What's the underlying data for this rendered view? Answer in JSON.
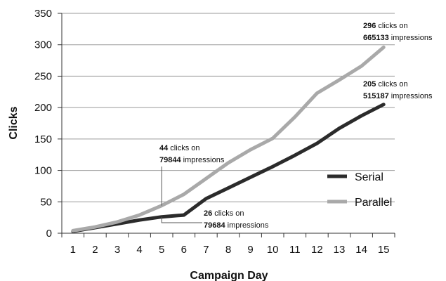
{
  "chart_data": {
    "type": "line",
    "title": "",
    "xlabel": "Campaign Day",
    "ylabel": "Clicks",
    "x": [
      1,
      2,
      3,
      4,
      5,
      6,
      7,
      8,
      9,
      10,
      11,
      12,
      13,
      14,
      15
    ],
    "ylim": [
      0,
      350
    ],
    "yticks": [
      0,
      50,
      100,
      150,
      200,
      250,
      300,
      350
    ],
    "grid": "horizontal",
    "legend_position": "right",
    "series": [
      {
        "name": "Serial",
        "color": "#2b2b2b",
        "values": [
          3,
          9,
          15,
          21,
          26,
          29,
          55,
          72,
          89,
          106,
          124,
          143,
          167,
          187,
          205
        ]
      },
      {
        "name": "Parallel",
        "color": "#a9a9a9",
        "values": [
          4,
          10,
          18,
          29,
          44,
          62,
          87,
          112,
          133,
          151,
          185,
          223,
          244,
          266,
          296
        ]
      }
    ],
    "annotations": [
      {
        "clicks": "296",
        "clicks_text": " clicks on",
        "impressions": "665133",
        "impressions_text": " impressions"
      },
      {
        "clicks": "205",
        "clicks_text": " clicks on",
        "impressions": "515187",
        "impressions_text": " impressions"
      },
      {
        "clicks": "44",
        "clicks_text": " clicks on",
        "impressions": "79844",
        "impressions_text": " impressions"
      },
      {
        "clicks": "26",
        "clicks_text": " clicks on",
        "impressions": "79684",
        "impressions_text": " impressions"
      }
    ]
  }
}
